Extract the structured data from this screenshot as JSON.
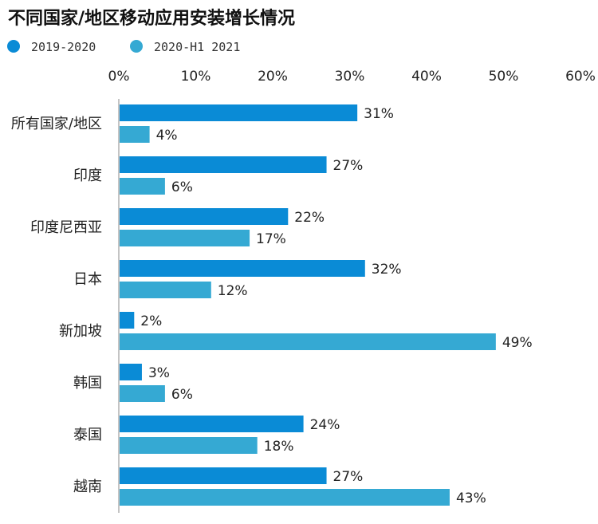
{
  "chart_data": {
    "type": "bar",
    "orientation": "horizontal",
    "title": "不同国家/地区移动应用安装增长情况",
    "categories": [
      "所有国家/地区",
      "印度",
      "印度尼西亚",
      "日本",
      "新加坡",
      "韩国",
      "泰国",
      "越南"
    ],
    "series": [
      {
        "name": "2019-2020",
        "color": "#0a8bd6",
        "values": [
          31,
          27,
          22,
          32,
          2,
          3,
          24,
          27
        ],
        "labels": [
          "31%",
          "27%",
          "22%",
          "32%",
          "2%",
          "3%",
          "24%",
          "27%"
        ]
      },
      {
        "name": "2020-H1 2021",
        "color": "#35a9d3",
        "values": [
          4,
          6,
          17,
          12,
          49,
          6,
          18,
          43
        ],
        "labels": [
          "4%",
          "6%",
          "17%",
          "12%",
          "49%",
          "6%",
          "18%",
          "43%"
        ]
      }
    ],
    "xlim": [
      0,
      60
    ],
    "xticks": [
      0,
      10,
      20,
      30,
      40,
      50,
      60
    ],
    "xtick_labels": [
      "0%",
      "10%",
      "20%",
      "30%",
      "40%",
      "50%",
      "60%"
    ],
    "legend_position": "top-left",
    "grid": false
  }
}
